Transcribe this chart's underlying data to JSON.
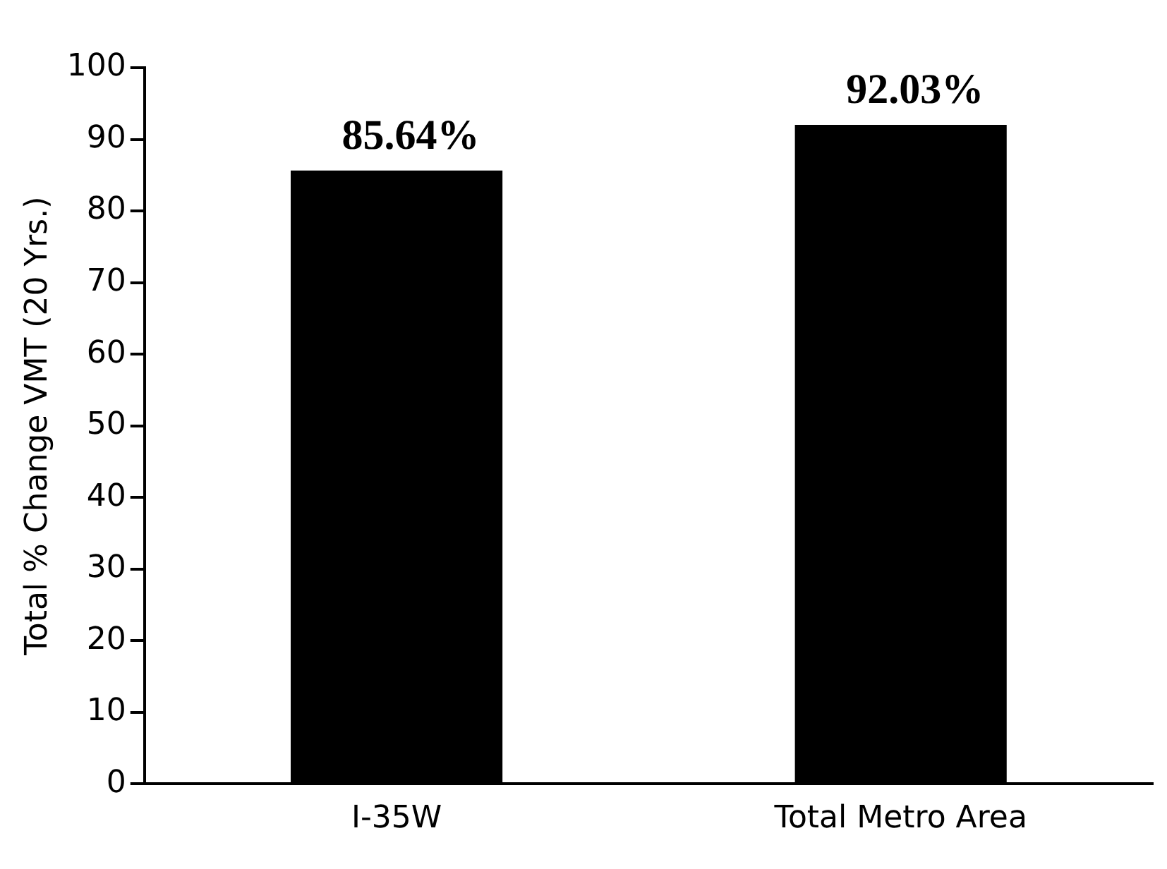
{
  "chart_data": {
    "type": "bar",
    "ylabel": "Total % Change VMT (20 Yrs.)",
    "categories": [
      "I-35W",
      "Total Metro Area"
    ],
    "values": [
      85.64,
      92.03
    ],
    "value_labels": [
      "85.64%",
      "92.03%"
    ],
    "color": "#000000",
    "ylim": [
      0,
      100
    ],
    "yticks": [
      0,
      10,
      20,
      30,
      40,
      50,
      60,
      70,
      80,
      90,
      100
    ],
    "grid": false,
    "legend": false
  }
}
